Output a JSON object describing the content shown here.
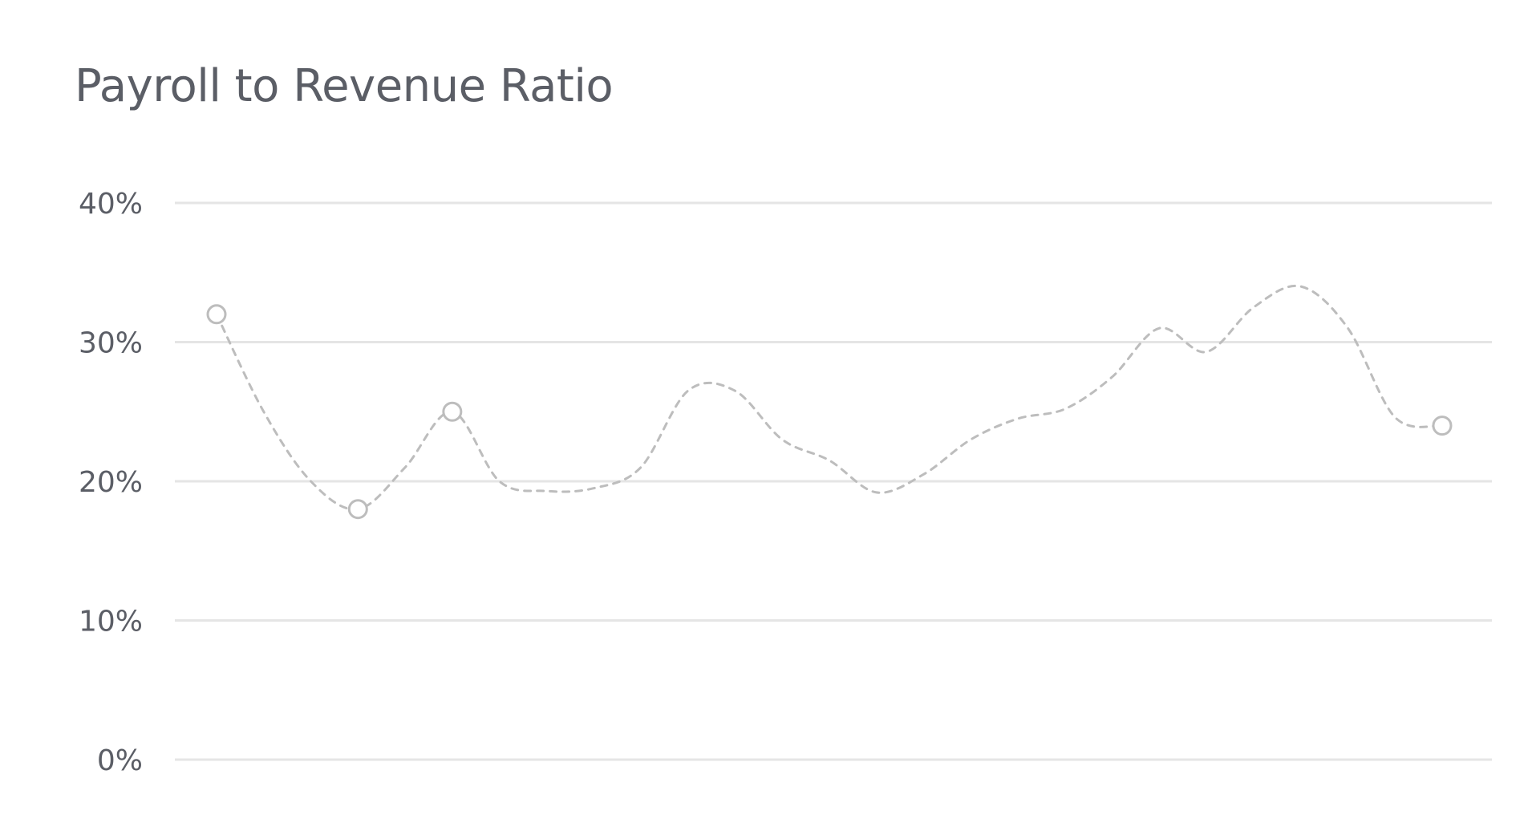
{
  "chart_data": {
    "type": "line",
    "title": "Payroll to Revenue Ratio",
    "xlabel": "",
    "ylabel": "",
    "ylim": [
      0,
      40
    ],
    "yticks": [
      "0%",
      "10%",
      "20%",
      "30%",
      "40%"
    ],
    "x": [
      0,
      1,
      2,
      3,
      4,
      5,
      6,
      7,
      8,
      9,
      10,
      11,
      12,
      13,
      14,
      15,
      16,
      17,
      18,
      19,
      20,
      21,
      22,
      23,
      24,
      25,
      26
    ],
    "series": [
      {
        "values": [
          32,
          25,
          20,
          18,
          21,
          25,
          20,
          19.3,
          19.5,
          21,
          26.5,
          26.5,
          23,
          21.5,
          19.2,
          20.5,
          23,
          24.5,
          25.2,
          27.5,
          31,
          29.3,
          32.5,
          34,
          31,
          24.6,
          24
        ],
        "markers": [
          0,
          3,
          5,
          26
        ],
        "line_style": "dashed",
        "color": "#bdbdbd"
      }
    ],
    "grid": true,
    "grid_color": "#e5e5e5",
    "legend": "none"
  }
}
